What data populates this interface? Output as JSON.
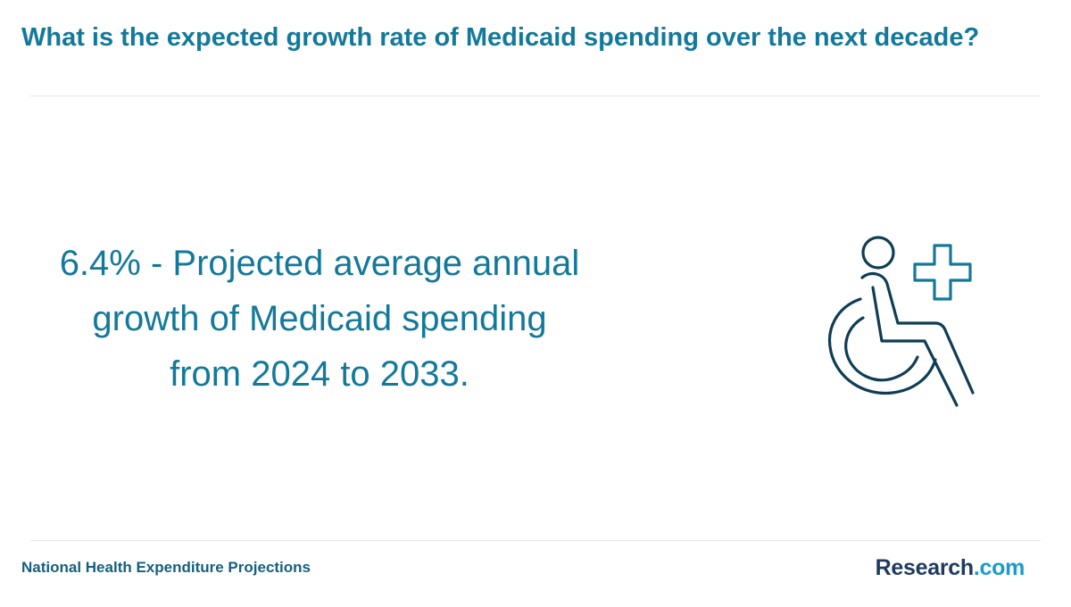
{
  "header": {
    "title": "What is the expected growth rate of Medicaid spending over the next decade?"
  },
  "main": {
    "stat_text": "6.4% - Projected average annual growth of Medicaid spending from 2024 to 2033.",
    "icon": "wheelchair-medical-cross-icon"
  },
  "footer": {
    "source": "National Health Expenditure Projections",
    "brand_name": "Research",
    "brand_tld": ".com"
  },
  "colors": {
    "accent": "#13799a",
    "icon_stroke": "#0f3d54",
    "brand_dark": "#1f3a5f",
    "brand_light": "#1a9bcf",
    "divider": "#e4e4e4"
  }
}
